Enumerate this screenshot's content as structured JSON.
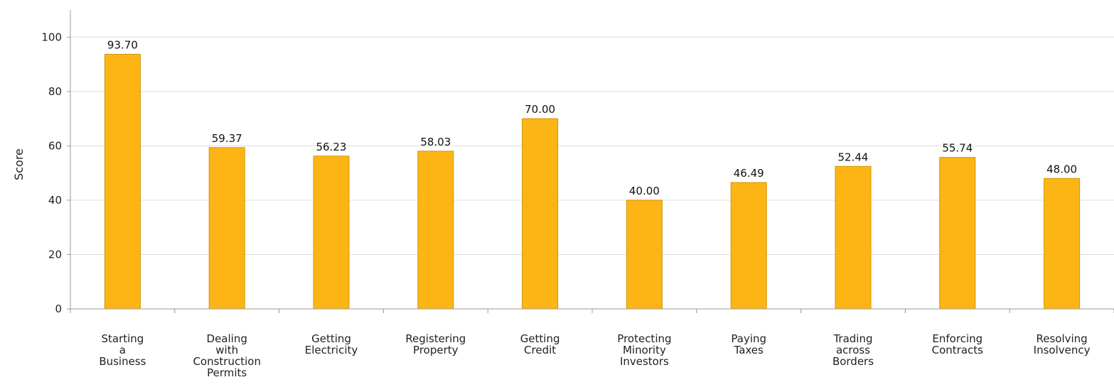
{
  "chart_data": {
    "type": "bar",
    "categories": [
      "Starting a Business",
      "Dealing with Construction Permits",
      "Getting Electricity",
      "Registering Property",
      "Getting Credit",
      "Protecting Minority Investors",
      "Paying Taxes",
      "Trading across Borders",
      "Enforcing Contracts",
      "Resolving Insolvency"
    ],
    "category_lines": [
      [
        "Starting",
        "a",
        "Business"
      ],
      [
        "Dealing",
        "with",
        "Construction",
        "Permits"
      ],
      [
        "Getting",
        "Electricity"
      ],
      [
        "Registering",
        "Property"
      ],
      [
        "Getting",
        "Credit"
      ],
      [
        "Protecting",
        "Minority",
        "Investors"
      ],
      [
        "Paying",
        "Taxes"
      ],
      [
        "Trading",
        "across",
        "Borders"
      ],
      [
        "Enforcing",
        "Contracts"
      ],
      [
        "Resolving",
        "Insolvency"
      ]
    ],
    "values": [
      93.7,
      59.37,
      56.23,
      58.03,
      70.0,
      40.0,
      46.49,
      52.44,
      55.74,
      48.0
    ],
    "value_labels": [
      "93.70",
      "59.37",
      "56.23",
      "58.03",
      "70.00",
      "40.00",
      "46.49",
      "52.44",
      "55.74",
      "48.00"
    ],
    "title": "",
    "xlabel": "",
    "ylabel": "Score",
    "ylim": [
      0,
      110
    ],
    "yticks": [
      0,
      20,
      40,
      60,
      80,
      100
    ],
    "grid": true,
    "legend": "none",
    "colors": {
      "bar_fill": "#fdb515",
      "bar_stroke": "#d39500",
      "grid": "#dddddd",
      "axis": "#999999"
    }
  }
}
